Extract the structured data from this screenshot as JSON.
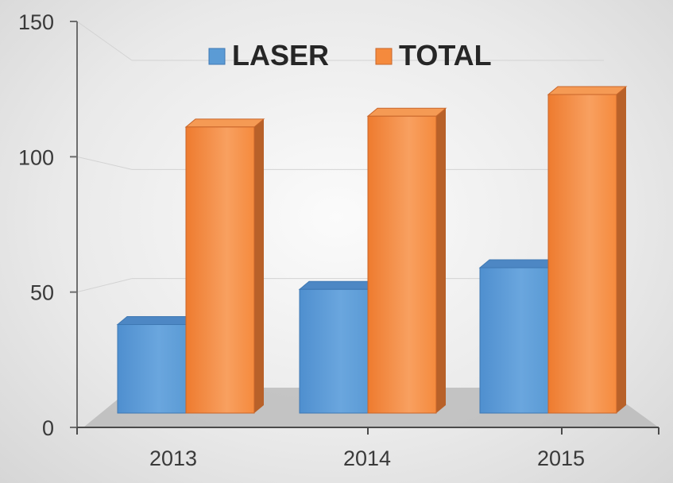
{
  "chart_data": {
    "type": "bar",
    "categories": [
      "2013",
      "2014",
      "2015"
    ],
    "series": [
      {
        "name": "LASER",
        "values": [
          38,
          51,
          59
        ]
      },
      {
        "name": "TOTAL",
        "values": [
          111,
          115,
          123
        ]
      }
    ],
    "ylim": [
      0,
      150
    ],
    "yticks": [
      "0",
      "50",
      "100",
      "150"
    ],
    "title": "",
    "xlabel": "",
    "ylabel": "",
    "legend": "top",
    "grid": true,
    "colors": {
      "LASER": "#5b9bd5",
      "TOTAL": "#f58a3d"
    }
  }
}
